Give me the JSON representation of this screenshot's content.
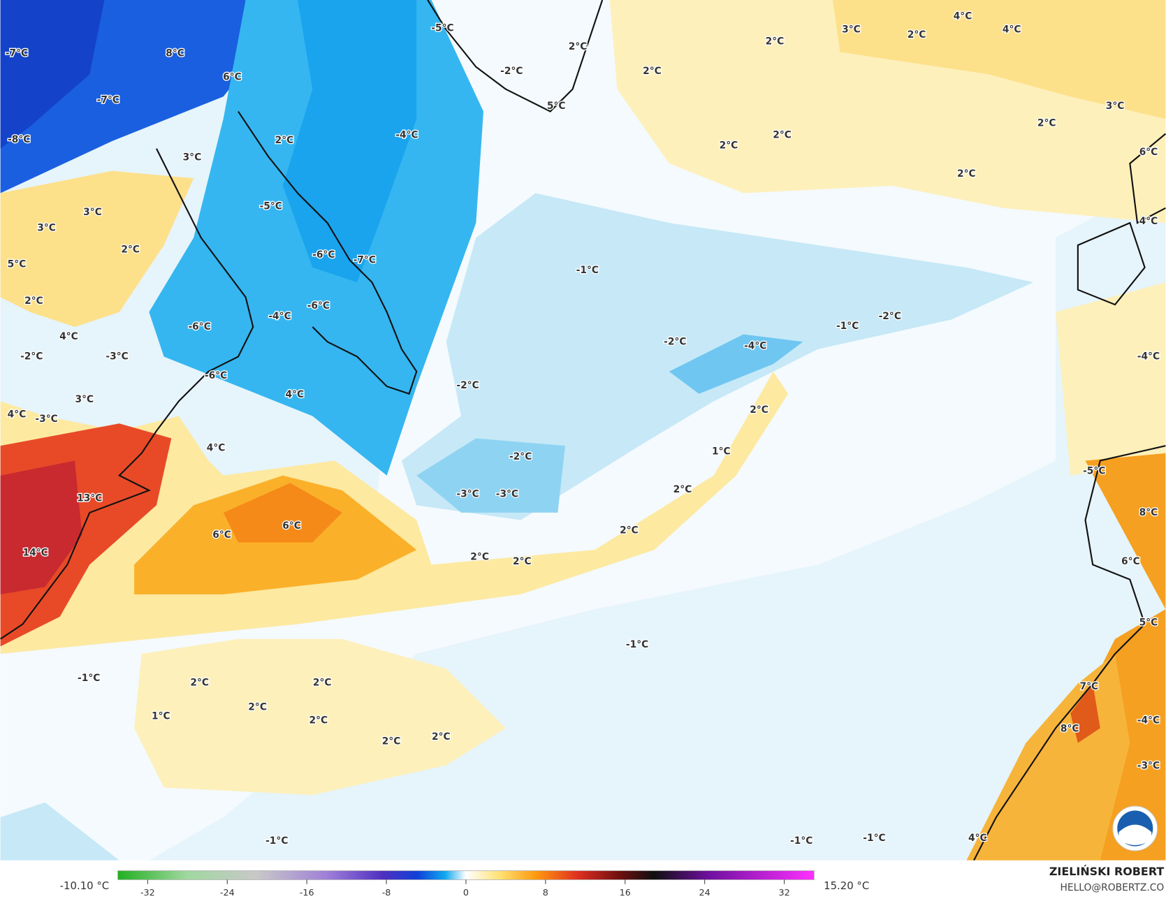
{
  "labels": [
    "-7°C",
    "8°C",
    "6°C",
    "-7°C",
    "-8°C",
    "3°C",
    "2°C",
    "-4°C",
    "-2°C",
    "2°C",
    "-5°C",
    "5°C",
    "2°C",
    "2°C",
    "3°C",
    "2°C",
    "4°C",
    "4°C",
    "3°C",
    "2°C",
    "6°C",
    "2°C",
    "2°C",
    "2°C",
    "3°C",
    "3°C",
    "2°C",
    "-5°C",
    "-6°C",
    "-7°C",
    "5°C",
    "2°C",
    "-6°C",
    "-4°C",
    "-6°C",
    "4°C",
    "-2°C",
    "-3°C",
    "-6°C",
    "3°C",
    "4°C",
    "-3°C",
    "4°C",
    "4°C",
    "-1°C",
    "-2°C",
    "-4°C",
    "-1°C",
    "-2°C",
    "-2°C",
    "2°C",
    "1°C",
    "2°C",
    "-2°C",
    "-3°C",
    "-3°C",
    "2°C",
    "13°C",
    "6°C",
    "6°C",
    "2°C",
    "2°C",
    "14°C",
    "-5°C",
    "8°C",
    "6°C",
    "5°C",
    "-1°C",
    "-1°C",
    "2°C",
    "2°C",
    "2°C",
    "1°C",
    "2°C",
    "2°C",
    "2°C",
    "7°C",
    "8°C",
    "-4°C",
    "-3°C",
    "4°C",
    "-1°C",
    "-1°C",
    "-1°C",
    "-4°C",
    "4°C"
  ],
  "colorbar": {
    "min_label": "-10.10 °C",
    "max_label": "15.20 °C",
    "lim": [
      -35,
      35
    ],
    "ticks": [
      -32,
      -24,
      -16,
      -8,
      0,
      8,
      16,
      24,
      32
    ]
  },
  "credit": {
    "name": "ZIELIŃSKI ROBERT",
    "email": "HELLO@ROBERTZ.CO"
  }
}
